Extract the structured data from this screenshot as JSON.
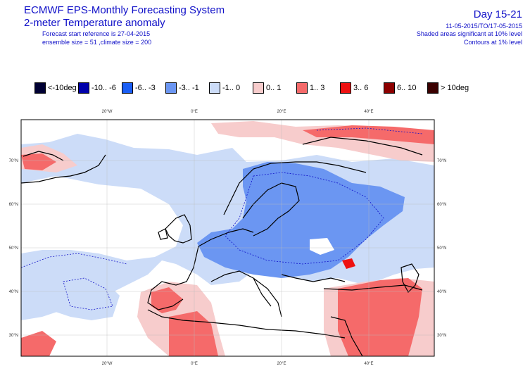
{
  "header": {
    "title": "ECMWF EPS-Monthly Forecasting System",
    "subtitle": "2-meter Temperature anomaly",
    "forecast_ref": "Forecast start reference is 27-04-2015",
    "ensemble": "ensemble size = 51 ,climate size = 200",
    "day": "Day 15-21",
    "dates": "11-05-2015/TO/17-05-2015",
    "significance": "Shaded areas significant at 10% level",
    "contours": "Contours at 1% level"
  },
  "legend": [
    {
      "label": "<-10deg",
      "color": "#000033"
    },
    {
      "label": "-10.. -6",
      "color": "#0000aa"
    },
    {
      "label": "-6.. -3",
      "color": "#1a5ef5"
    },
    {
      "label": "-3.. -1",
      "color": "#6b96f2"
    },
    {
      "label": "-1.. 0",
      "color": "#ccdcf8"
    },
    {
      "label": "0.. 1",
      "color": "#f7cccc"
    },
    {
      "label": "1.. 3",
      "color": "#f56a6a"
    },
    {
      "label": "3.. 6",
      "color": "#ee1111"
    },
    {
      "label": "6.. 10",
      "color": "#8c0000"
    },
    {
      "label": "> 10deg",
      "color": "#3a0000"
    }
  ],
  "map": {
    "lon_ticks": [
      "20°W",
      "0°E",
      "20°E",
      "40°E"
    ],
    "lat_ticks": [
      "70°N",
      "60°N",
      "50°N",
      "40°N",
      "30°N"
    ]
  }
}
